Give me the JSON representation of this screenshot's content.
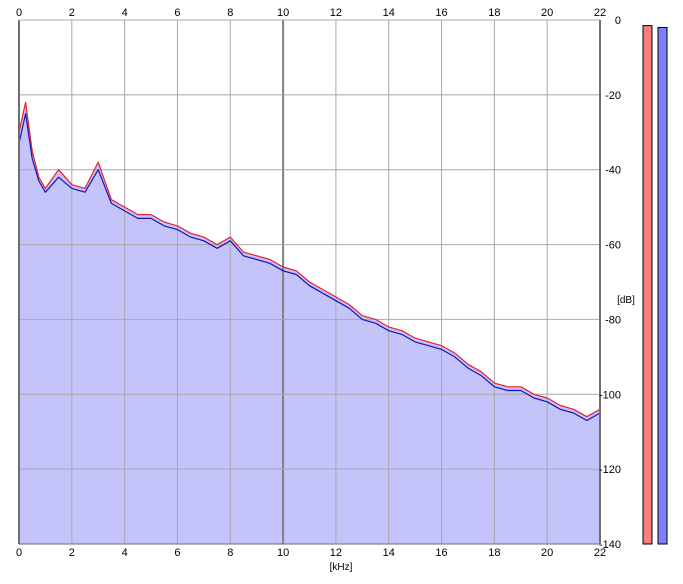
{
  "chart_data": {
    "type": "area",
    "xlabel": "[kHz]",
    "ylabel": "[dB]",
    "xlim": [
      0,
      22
    ],
    "ylim": [
      -140,
      0
    ],
    "x_ticks": [
      "0",
      "2",
      "4",
      "6",
      "8",
      "10",
      "12",
      "14",
      "16",
      "18",
      "20",
      "22"
    ],
    "y_ticks": [
      "0",
      "-20",
      "-40",
      "-60",
      "-80",
      "-100",
      "-120",
      "-140"
    ],
    "grid": true,
    "series": [
      {
        "color": "#e8202a",
        "x": [
          0,
          0.25,
          0.5,
          0.75,
          1,
          1.5,
          2,
          2.5,
          3,
          3.5,
          4,
          4.5,
          5,
          5.5,
          6,
          6.5,
          7,
          7.5,
          8,
          8.5,
          9,
          9.5,
          10,
          10.5,
          11,
          11.5,
          12,
          12.5,
          13,
          13.5,
          14,
          14.5,
          15,
          15.5,
          16,
          16.5,
          17,
          17.5,
          18,
          18.5,
          19,
          19.5,
          20,
          20.5,
          21,
          21.5,
          22
        ],
        "values": [
          -30,
          -22,
          -35,
          -42,
          -45,
          -40,
          -44,
          -45,
          -38,
          -48,
          -50,
          -52,
          -52,
          -54,
          -55,
          -57,
          -58,
          -60,
          -58,
          -62,
          -63,
          -64,
          -66,
          -67,
          -70,
          -72,
          -74,
          -76,
          -79,
          -80,
          -82,
          -83,
          -85,
          -86,
          -87,
          -89,
          -92,
          -94,
          -97,
          -98,
          -98,
          -100,
          -101,
          -103,
          -104,
          -106,
          -104
        ]
      },
      {
        "color": "#1515b8",
        "x": [
          0,
          0.25,
          0.5,
          0.75,
          1,
          1.5,
          2,
          2.5,
          3,
          3.5,
          4,
          4.5,
          5,
          5.5,
          6,
          6.5,
          7,
          7.5,
          8,
          8.5,
          9,
          9.5,
          10,
          10.5,
          11,
          11.5,
          12,
          12.5,
          13,
          13.5,
          14,
          14.5,
          15,
          15.5,
          16,
          16.5,
          17,
          17.5,
          18,
          18.5,
          19,
          19.5,
          20,
          20.5,
          21,
          21.5,
          22
        ],
        "values": [
          -33,
          -25,
          -37,
          -43,
          -46,
          -42,
          -45,
          -46,
          -40,
          -49,
          -51,
          -53,
          -53,
          -55,
          -56,
          -58,
          -59,
          -61,
          -59,
          -63,
          -64,
          -65,
          -67,
          -68,
          -71,
          -73,
          -75,
          -77,
          -80,
          -81,
          -83,
          -84,
          -86,
          -87,
          -88,
          -90,
          -93,
          -95,
          -98,
          -99,
          -99,
          -101,
          -102,
          -104,
          -105,
          -107,
          -105
        ]
      }
    ],
    "area_fill": "#c4c4fb",
    "level_meters": [
      {
        "color": "#f87f7f",
        "value": -1.5
      },
      {
        "color": "#7f7ff8",
        "value": -2
      }
    ]
  }
}
